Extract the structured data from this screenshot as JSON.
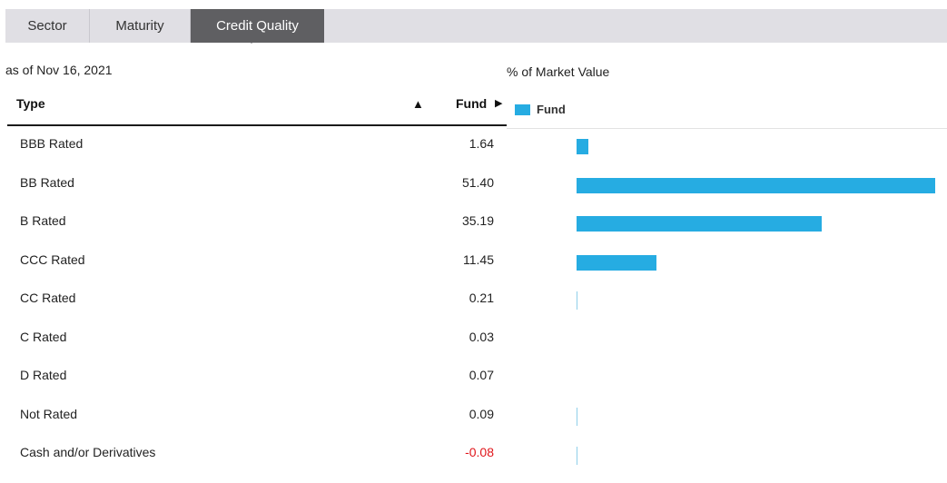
{
  "tabs": [
    {
      "label": "Sector",
      "active": false
    },
    {
      "label": "Maturity",
      "active": false
    },
    {
      "label": "Credit Quality",
      "active": true
    }
  ],
  "as_of": "as of Nov 16, 2021",
  "table": {
    "headers": {
      "type": "Type",
      "fund": "Fund"
    },
    "sort_icon": "triangle-up-icon",
    "fund_arrow_icon": "triangle-right-icon",
    "rows": [
      {
        "type": "BBB Rated",
        "fund": "1.64"
      },
      {
        "type": "BB Rated",
        "fund": "51.40"
      },
      {
        "type": "B Rated",
        "fund": "35.19"
      },
      {
        "type": "CCC Rated",
        "fund": "11.45"
      },
      {
        "type": "CC Rated",
        "fund": "0.21"
      },
      {
        "type": "C Rated",
        "fund": "0.03"
      },
      {
        "type": "D Rated",
        "fund": "0.07"
      },
      {
        "type": "Not Rated",
        "fund": "0.09"
      },
      {
        "type": "Cash and/or Derivatives",
        "fund": "-0.08"
      }
    ]
  },
  "chart_data": {
    "type": "bar",
    "orientation": "horizontal",
    "title": "% of Market Value",
    "categories": [
      "BBB Rated",
      "BB Rated",
      "B Rated",
      "CCC Rated",
      "CC Rated",
      "C Rated",
      "D Rated",
      "Not Rated",
      "Cash and/or Derivatives"
    ],
    "series": [
      {
        "name": "Fund",
        "values": [
          1.64,
          51.4,
          35.19,
          11.45,
          0.21,
          0.03,
          0.07,
          0.09,
          -0.08
        ]
      }
    ],
    "legend": "top-left",
    "grid": false
  },
  "colors": {
    "bar": "#26ace2",
    "negative_text": "#e0161b",
    "active_tab": "#5f5f62",
    "tab_bar": "#e0dfe4"
  }
}
